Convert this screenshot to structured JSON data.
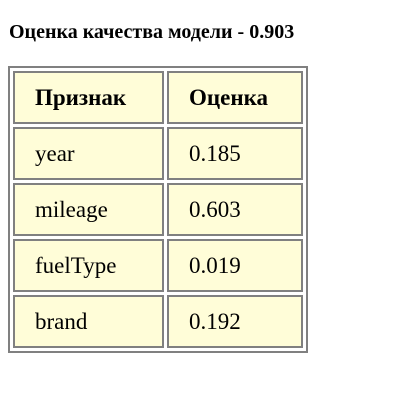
{
  "title": "Оценка качества модели - 0.903",
  "table": {
    "headers": [
      "Признак",
      "Оценка"
    ],
    "rows": [
      {
        "feature": "year",
        "score": "0.185"
      },
      {
        "feature": "mileage",
        "score": "0.603"
      },
      {
        "feature": "fuelType",
        "score": "0.019"
      },
      {
        "feature": "brand",
        "score": "0.192"
      }
    ]
  },
  "colors": {
    "cell_background": "#fffdd8",
    "border": "#808080",
    "text": "#000000"
  }
}
